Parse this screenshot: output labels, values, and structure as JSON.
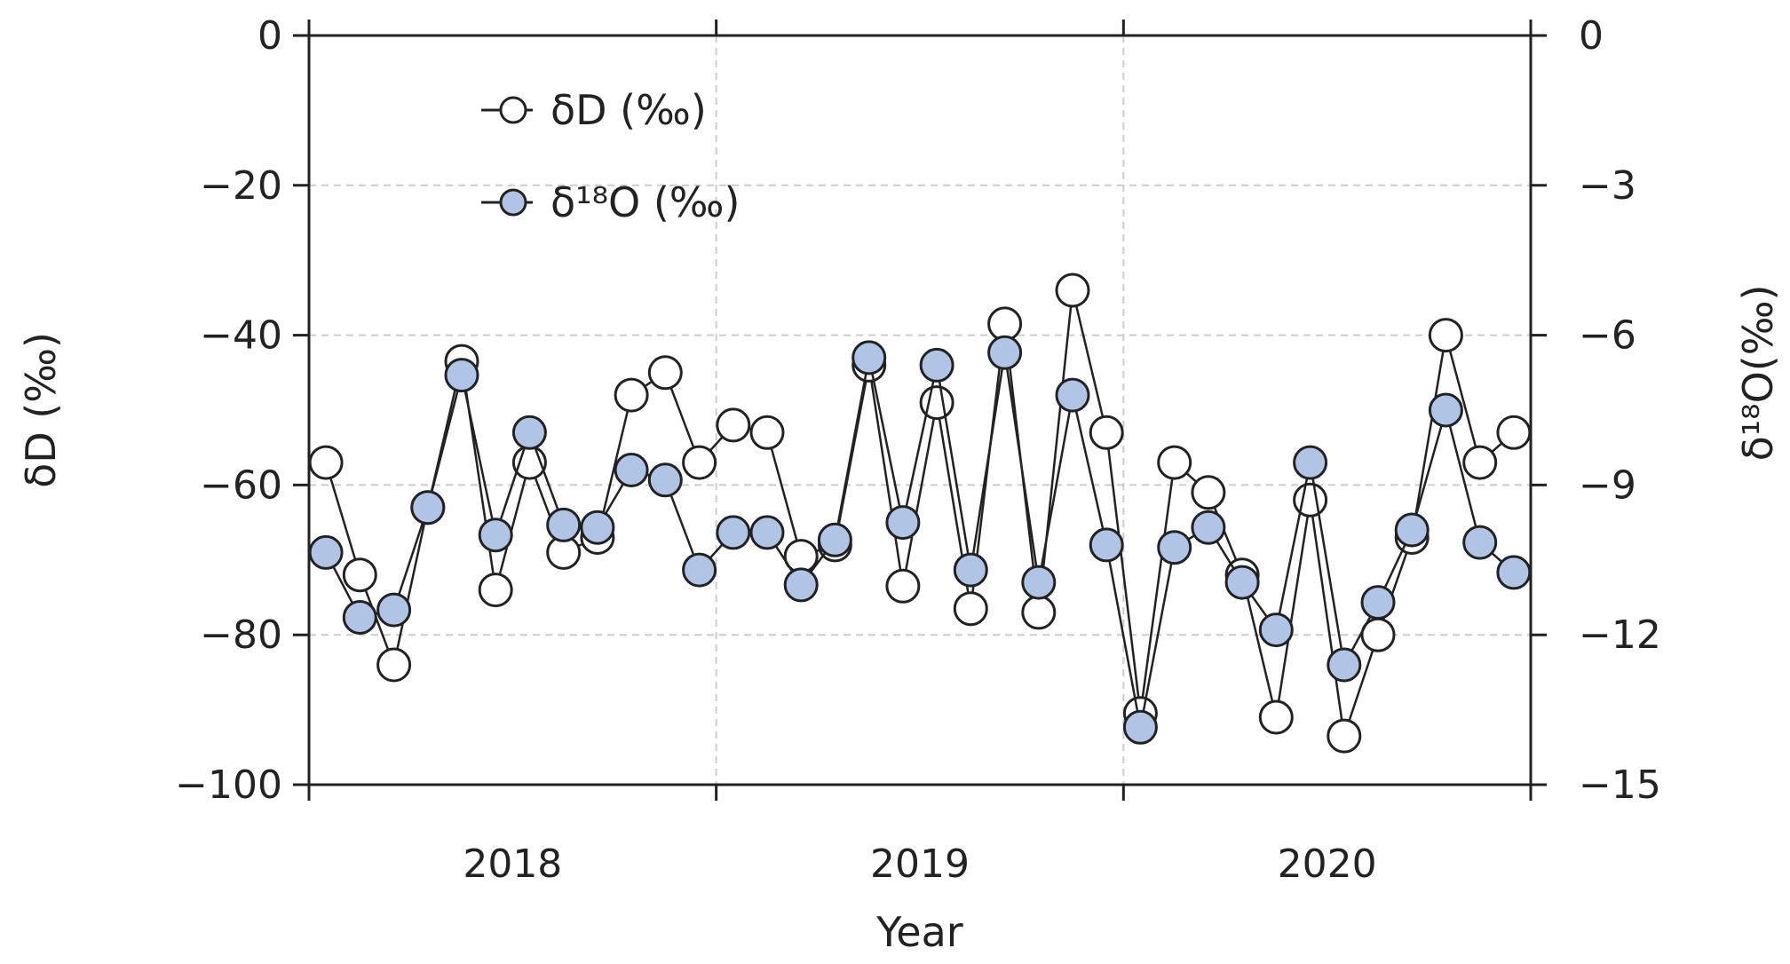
{
  "chart_data": {
    "type": "line",
    "x_axis": {
      "label": "Year",
      "ticks": [
        "2018",
        "2019",
        "2020"
      ],
      "boundaries": [
        0,
        12,
        24,
        36
      ]
    },
    "y_axis_left": {
      "label": "δD (‰)",
      "ylim": [
        -100,
        0
      ],
      "ticks": [
        0,
        -20,
        -40,
        -60,
        -80,
        -100
      ],
      "tick_labels": [
        "0",
        "−20",
        "−40",
        "−60",
        "−80",
        "−100"
      ]
    },
    "y_axis_right": {
      "label": "δ¹⁸O(‰)",
      "ylim": [
        -15,
        0
      ],
      "ticks": [
        0,
        -3,
        -6,
        -9,
        -12,
        -15
      ],
      "tick_labels": [
        "0",
        "−3",
        "−6",
        "−9",
        "−12",
        "−15"
      ]
    },
    "grid": true,
    "legend_position": "top-left",
    "series": [
      {
        "name": "δD (‰)",
        "axis": "left",
        "marker_fill": "#ffffff",
        "x": [
          0.5,
          1.5,
          2.5,
          3.5,
          4.5,
          5.5,
          6.5,
          7.5,
          8.5,
          9.5,
          10.5,
          11.5,
          12.5,
          13.5,
          14.5,
          15.5,
          16.5,
          17.5,
          18.5,
          19.5,
          20.5,
          21.5,
          22.5,
          23.5,
          24.5,
          25.5,
          26.5,
          27.5,
          28.5,
          29.5,
          30.5,
          31.5,
          32.5,
          33.5,
          34.5,
          35.5
        ],
        "values": [
          -57,
          -72,
          -84,
          -63,
          -43.5,
          -74,
          -57,
          -69,
          -67,
          -48,
          -45,
          -57,
          -52,
          -53,
          -69.5,
          -68,
          -44,
          -73.5,
          -49,
          -76.5,
          -38.5,
          -77,
          -34,
          -53,
          -90.5,
          -57,
          -61,
          -72,
          -91,
          -62,
          -93.5,
          -80,
          -67,
          -40,
          -57,
          -53
        ]
      },
      {
        "name": "δ¹⁸O (‰)",
        "axis": "right",
        "marker_fill": "#b0c4e6",
        "x": [
          0.5,
          1.5,
          2.5,
          3.5,
          4.5,
          5.5,
          6.5,
          7.5,
          8.5,
          9.5,
          10.5,
          11.5,
          12.5,
          13.5,
          14.5,
          15.5,
          16.5,
          17.5,
          18.5,
          19.5,
          20.5,
          21.5,
          22.5,
          23.5,
          24.5,
          25.5,
          26.5,
          27.5,
          28.5,
          29.5,
          30.5,
          31.5,
          32.5,
          33.5,
          34.5,
          35.5
        ],
        "values": [
          -10.35,
          -11.65,
          -11.5,
          -9.45,
          -6.8,
          -10.0,
          -7.95,
          -9.8,
          -9.85,
          -8.7,
          -8.9,
          -10.7,
          -9.95,
          -9.95,
          -11.0,
          -10.1,
          -6.45,
          -9.75,
          -6.6,
          -10.7,
          -6.35,
          -10.95,
          -7.2,
          -10.2,
          -13.85,
          -10.25,
          -9.85,
          -10.95,
          -11.9,
          -8.55,
          -12.6,
          -11.35,
          -9.9,
          -7.5,
          -10.15,
          -10.75
        ]
      }
    ],
    "legend": [
      "δD (‰)",
      "δ¹⁸O (‰)"
    ]
  }
}
